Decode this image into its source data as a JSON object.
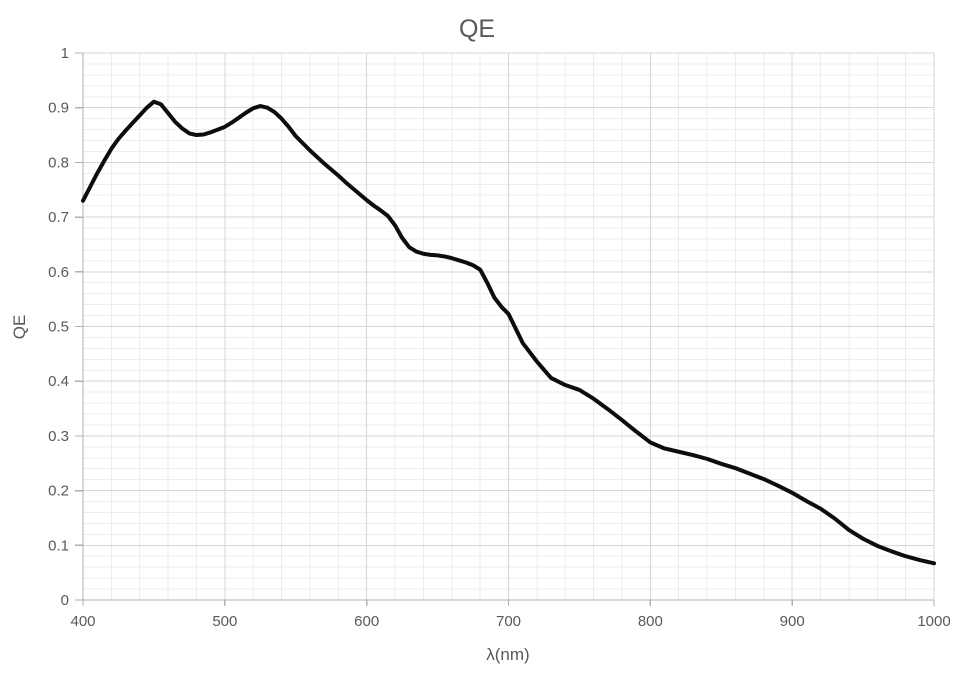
{
  "chart": {
    "title": "QE",
    "x_axis_title": "λ(nm)",
    "y_axis_title": "QE"
  },
  "colors": {
    "background": "#ffffff",
    "curve": "#0d0d0d",
    "axis_line": "#b0b0b0",
    "major_grid": "#d6d6d6",
    "minor_grid": "#ededed",
    "text": "#595959"
  },
  "chart_data": {
    "type": "line",
    "title": "QE",
    "xlabel": "λ(nm)",
    "ylabel": "QE",
    "xlim": [
      400,
      1000
    ],
    "ylim": [
      0,
      1
    ],
    "grid": "major+minor",
    "minor_x_step": 20,
    "minor_y_step": 0.02,
    "legend": "none",
    "x_ticks": {
      "values": [
        400,
        500,
        600,
        700,
        800,
        900,
        1000
      ],
      "labels": [
        "400",
        "500",
        "600",
        "700",
        "800",
        "900",
        "1000"
      ]
    },
    "y_ticks": {
      "values": [
        0,
        0.1,
        0.2,
        0.3,
        0.4,
        0.5,
        0.6,
        0.7,
        0.8,
        0.9,
        1
      ],
      "labels": [
        "0",
        "0.1",
        "0.2",
        "0.3",
        "0.4",
        "0.5",
        "0.6",
        "0.7",
        "0.8",
        "0.9",
        "1"
      ]
    },
    "series": [
      {
        "name": "QE",
        "x": [
          400,
          405,
          410,
          415,
          420,
          425,
          430,
          435,
          440,
          445,
          450,
          455,
          460,
          465,
          470,
          475,
          480,
          485,
          490,
          495,
          500,
          505,
          510,
          515,
          520,
          525,
          530,
          535,
          540,
          545,
          550,
          555,
          560,
          565,
          570,
          575,
          580,
          585,
          590,
          595,
          600,
          605,
          610,
          615,
          620,
          625,
          630,
          635,
          640,
          645,
          650,
          655,
          660,
          665,
          670,
          675,
          680,
          685,
          690,
          695,
          700,
          710,
          720,
          730,
          740,
          750,
          760,
          770,
          780,
          790,
          800,
          810,
          820,
          830,
          840,
          850,
          860,
          870,
          880,
          890,
          900,
          910,
          920,
          930,
          940,
          950,
          960,
          970,
          980,
          990,
          1000
        ],
        "y": [
          0.73,
          0.755,
          0.78,
          0.803,
          0.825,
          0.843,
          0.858,
          0.872,
          0.886,
          0.9,
          0.911,
          0.906,
          0.89,
          0.874,
          0.862,
          0.853,
          0.85,
          0.851,
          0.855,
          0.86,
          0.865,
          0.873,
          0.882,
          0.891,
          0.899,
          0.903,
          0.9,
          0.892,
          0.88,
          0.865,
          0.848,
          0.835,
          0.822,
          0.81,
          0.798,
          0.787,
          0.776,
          0.764,
          0.753,
          0.742,
          0.731,
          0.721,
          0.712,
          0.702,
          0.685,
          0.662,
          0.645,
          0.637,
          0.633,
          0.631,
          0.63,
          0.628,
          0.625,
          0.621,
          0.617,
          0.612,
          0.604,
          0.58,
          0.553,
          0.536,
          0.523,
          0.47,
          0.436,
          0.406,
          0.393,
          0.384,
          0.368,
          0.349,
          0.329,
          0.308,
          0.288,
          0.277,
          0.271,
          0.265,
          0.258,
          0.249,
          0.241,
          0.231,
          0.221,
          0.209,
          0.196,
          0.181,
          0.167,
          0.149,
          0.128,
          0.112,
          0.099,
          0.089,
          0.08,
          0.073,
          0.067
        ]
      }
    ]
  }
}
